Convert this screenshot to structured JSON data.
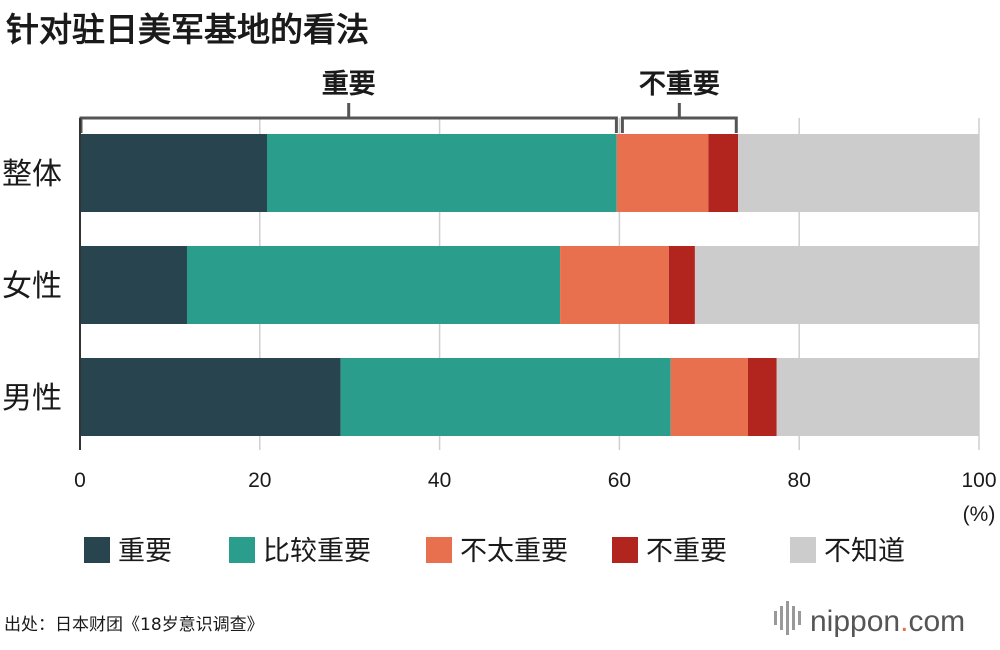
{
  "title": "针对驻日美军基地的看法",
  "chart_data": {
    "type": "bar",
    "orientation": "horizontal",
    "stacked": true,
    "categories": [
      "整体",
      "女性",
      "男性"
    ],
    "series": [
      {
        "name": "重要",
        "values": [
          20.8,
          11.9,
          29.0
        ],
        "color": "#27444f"
      },
      {
        "name": "比较重要",
        "values": [
          38.9,
          41.5,
          36.7
        ],
        "color": "#2a9d8c"
      },
      {
        "name": "不太重要",
        "values": [
          10.2,
          12.1,
          8.6
        ],
        "color": "#e8704f"
      },
      {
        "name": "不重要",
        "values": [
          3.3,
          2.9,
          3.2
        ],
        "color": "#b2241e"
      },
      {
        "name": "不知道",
        "values": [
          26.8,
          31.6,
          22.5
        ],
        "color": "#cccccc"
      }
    ],
    "xlim": [
      0,
      100
    ],
    "xticks": [
      "0",
      "20",
      "40",
      "60",
      "80",
      "100"
    ],
    "x_unit": "(%)",
    "grid": true,
    "legend_position": "bottom",
    "brackets": [
      {
        "label": "重要",
        "from": 0,
        "to": 60
      },
      {
        "label": "不重要",
        "from": 60,
        "to": 73
      }
    ]
  },
  "source": "出处：日本财团《18岁意识调查》",
  "logo": {
    "name": "nippon",
    "dot": ".",
    "suffix": "com",
    "dot_color": "#e8704f"
  }
}
